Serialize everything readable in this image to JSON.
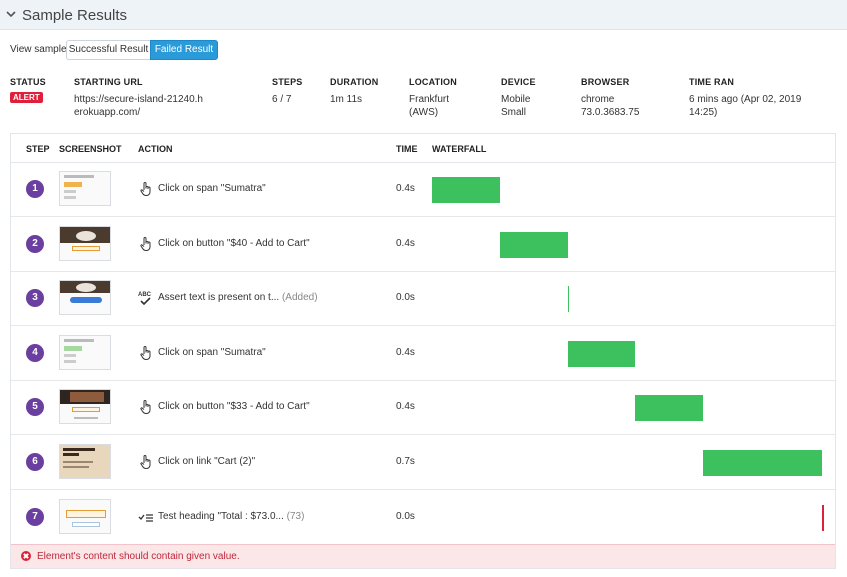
{
  "header": {
    "title": "Sample Results",
    "toggle_icon": "chevron-down-icon"
  },
  "view_sample": {
    "label": "View sample",
    "options": [
      "Successful Result",
      "Failed Result"
    ],
    "selected": "Failed Result"
  },
  "meta": {
    "status": {
      "label": "STATUS",
      "value": "ALERT"
    },
    "starting_url": {
      "label": "STARTING URL",
      "value": "https://secure-island-21240.herokuapp.com/"
    },
    "steps": {
      "label": "STEPS",
      "value": "6 / 7"
    },
    "duration": {
      "label": "DURATION",
      "value": "1m 11s"
    },
    "location": {
      "label": "LOCATION",
      "value": "Frankfurt (AWS)"
    },
    "device": {
      "label": "DEVICE",
      "value": "Mobile Small"
    },
    "browser": {
      "label": "BROWSER",
      "value": "chrome 73.0.3683.75"
    },
    "time_ran": {
      "label": "TIME RAN",
      "value": "6 mins ago (Apr 02, 2019 14:25)"
    }
  },
  "table": {
    "headers": {
      "step": "STEP",
      "screenshot": "SCREENSHOT",
      "action": "ACTION",
      "time": "TIME",
      "waterfall": "WATERFALL"
    },
    "rows": [
      {
        "step": "1",
        "icon": "pointer-hand-icon",
        "action": "Click on span \"Sumatra\"",
        "note": "",
        "time": "0.4s",
        "wf_start": 0.0,
        "wf_duration": 0.4,
        "wf_status": "success"
      },
      {
        "step": "2",
        "icon": "pointer-hand-icon",
        "action": "Click on button \"$40 - Add to Cart\"",
        "note": "",
        "time": "0.4s",
        "wf_start": 0.4,
        "wf_duration": 0.4,
        "wf_status": "success"
      },
      {
        "step": "3",
        "icon": "assert-text-icon",
        "action": "Assert text is present on t...",
        "note": "(Added)",
        "time": "0.0s",
        "wf_start": 0.8,
        "wf_duration": 0.0,
        "wf_status": "success"
      },
      {
        "step": "4",
        "icon": "pointer-hand-icon",
        "action": "Click on span \"Sumatra\"",
        "note": "",
        "time": "0.4s",
        "wf_start": 0.8,
        "wf_duration": 0.4,
        "wf_status": "success"
      },
      {
        "step": "5",
        "icon": "pointer-hand-icon",
        "action": "Click on button \"$33 - Add to Cart\"",
        "note": "",
        "time": "0.4s",
        "wf_start": 1.2,
        "wf_duration": 0.4,
        "wf_status": "success"
      },
      {
        "step": "6",
        "icon": "pointer-hand-icon",
        "action": "Click on link \"Cart (2)\"",
        "note": "",
        "time": "0.7s",
        "wf_start": 1.6,
        "wf_duration": 0.7,
        "wf_status": "success"
      },
      {
        "step": "7",
        "icon": "test-heading-icon",
        "action": "Test heading \"Total : $73.0...",
        "note": "(73)",
        "time": "0.0s",
        "wf_start": 2.3,
        "wf_duration": 0.0,
        "wf_status": "failed"
      }
    ]
  },
  "error": {
    "icon": "error-x-icon",
    "message": "Element's content should contain given value."
  },
  "colors": {
    "step_badge": "#6a3fa0",
    "wf_success": "#3cc15e",
    "wf_failed": "#d9233a",
    "alert": "#e0203a",
    "selected_tab": "#2b9ad8"
  }
}
